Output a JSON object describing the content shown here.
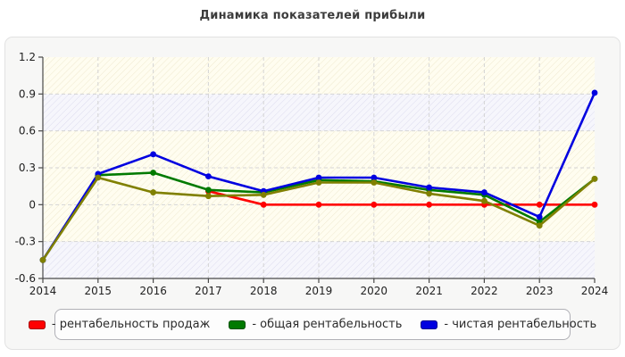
{
  "page": {
    "title": "Динамика показателей прибыли"
  },
  "chart_data": {
    "type": "line",
    "title": "Динамика показателей прибыли",
    "x": [
      "2014",
      "2015",
      "2016",
      "2017",
      "2018",
      "2019",
      "2020",
      "2021",
      "2022",
      "2023",
      "2024"
    ],
    "ylim": [
      -0.6,
      1.2
    ],
    "yticks": [
      1.2,
      0.9,
      0.6,
      0.3,
      0,
      -0.3,
      -0.6
    ],
    "ytick_labels": [
      "1.2",
      "0.9",
      "0.6",
      "0.3",
      "0",
      "-0.3",
      "-0.6"
    ],
    "grid": "dashed",
    "legend_position": "bottom",
    "highlight_bands": [
      [
        0.6,
        0.9
      ],
      [
        -0.6,
        -0.3
      ]
    ],
    "series": [
      {
        "key": "sales-profitability",
        "name": "рентабельность продаж",
        "color": "#ff0000",
        "in_legend": true,
        "values": [
          null,
          null,
          null,
          0.11,
          0,
          0,
          0,
          0,
          0,
          0,
          0
        ]
      },
      {
        "key": "total-profitability",
        "name": "общая рентабельность",
        "color": "#007a00",
        "in_legend": true,
        "values": [
          -0.45,
          0.24,
          0.26,
          0.12,
          0.1,
          0.2,
          0.19,
          0.12,
          0.08,
          -0.14,
          0.21
        ]
      },
      {
        "key": "net-profitability",
        "name": "чистая рентабельность",
        "color": "#0000e0",
        "in_legend": true,
        "values": [
          -0.45,
          0.25,
          0.41,
          0.23,
          0.11,
          0.22,
          0.22,
          0.14,
          0.1,
          -0.1,
          0.91
        ]
      },
      {
        "key": "unlabeled-olive",
        "name": "",
        "color": "#808000",
        "in_legend": false,
        "values": [
          -0.45,
          0.22,
          0.1,
          0.07,
          0.08,
          0.18,
          0.18,
          0.09,
          0.03,
          -0.17,
          0.21
        ]
      }
    ]
  },
  "legend": {
    "items": [
      {
        "label": "- рентабельность продаж",
        "color": "#ff0000"
      },
      {
        "label": "- общая рентабельность",
        "color": "#007a00"
      },
      {
        "label": "- чистая рентабельность",
        "color": "#0000e0"
      }
    ]
  },
  "colors": {
    "band_cream_bg": "#fffdf0",
    "band_cream_hatch": "#efe9cf",
    "band_blue_bg": "#f6f6fc",
    "band_blue_hatch": "#dddcee",
    "gridline": "#d4d4d4",
    "axis": "#4a4a4a",
    "tick_label": "#1f1f1f",
    "panel_bg": "#f7f7f6",
    "legend_border": "#b0b0b6"
  }
}
